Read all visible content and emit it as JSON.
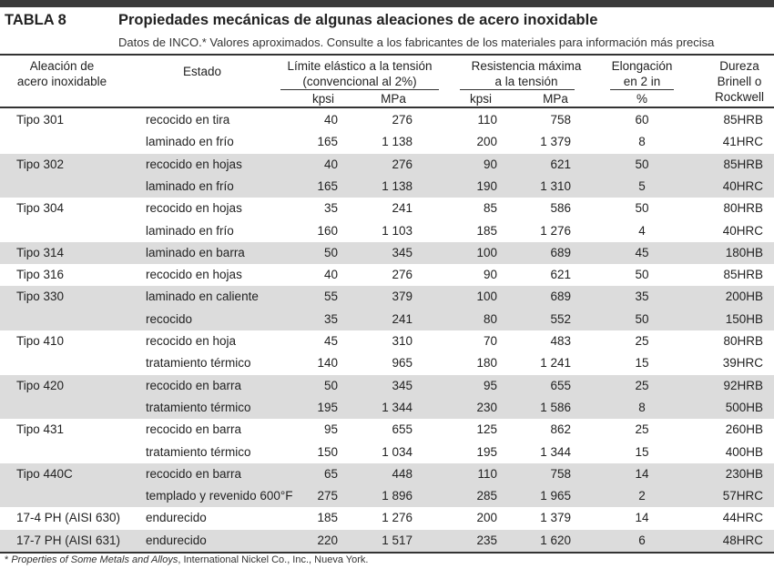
{
  "header": {
    "table_label": "TABLA 8",
    "title": "Propiedades mecánicas de algunas aleaciones de acero inoxidable",
    "subtitle": "Datos de INCO.* Valores aproximados. Consulte a los fabricantes de los materiales para información más precisa"
  },
  "columns": {
    "alloy": [
      "Aleación de",
      "acero inoxidable"
    ],
    "state": "Estado",
    "yield": [
      "Límite elástico a la tensión",
      "(convencional al 2%)"
    ],
    "yield_units": [
      "kpsi",
      "MPa"
    ],
    "ultimate": [
      "Resistencia máxima",
      "a la tensión"
    ],
    "ultimate_units": [
      "kpsi",
      "MPa"
    ],
    "elongation": [
      "Elongación",
      "en 2 in"
    ],
    "elongation_unit": "%",
    "hardness": [
      "Dureza",
      "Brinell o",
      "Rockwell"
    ]
  },
  "rows": [
    {
      "alloy": "Tipo 301",
      "state": "recocido en tira",
      "sy_kpsi": "40",
      "sy_mpa": "276",
      "su_kpsi": "110",
      "su_mpa": "758",
      "elong": "60",
      "hard": "85HRB",
      "shaded": false
    },
    {
      "alloy": "",
      "state": "laminado en frío",
      "sy_kpsi": "165",
      "sy_mpa": "1 138",
      "su_kpsi": "200",
      "su_mpa": "1 379",
      "elong": "8",
      "hard": "41HRC",
      "shaded": false
    },
    {
      "alloy": "Tipo 302",
      "state": "recocido en hojas",
      "sy_kpsi": "40",
      "sy_mpa": "276",
      "su_kpsi": "90",
      "su_mpa": "621",
      "elong": "50",
      "hard": "85HRB",
      "shaded": true
    },
    {
      "alloy": "",
      "state": "laminado en frío",
      "sy_kpsi": "165",
      "sy_mpa": "1 138",
      "su_kpsi": "190",
      "su_mpa": "1 310",
      "elong": "5",
      "hard": "40HRC",
      "shaded": true
    },
    {
      "alloy": "Tipo 304",
      "state": "recocido en hojas",
      "sy_kpsi": "35",
      "sy_mpa": "241",
      "su_kpsi": "85",
      "su_mpa": "586",
      "elong": "50",
      "hard": "80HRB",
      "shaded": false
    },
    {
      "alloy": "",
      "state": "laminado en frío",
      "sy_kpsi": "160",
      "sy_mpa": "1 103",
      "su_kpsi": "185",
      "su_mpa": "1 276",
      "elong": "4",
      "hard": "40HRC",
      "shaded": false
    },
    {
      "alloy": "Tipo 314",
      "state": "laminado en barra",
      "sy_kpsi": "50",
      "sy_mpa": "345",
      "su_kpsi": "100",
      "su_mpa": "689",
      "elong": "45",
      "hard": "180HB",
      "shaded": true
    },
    {
      "alloy": "Tipo 316",
      "state": "recocido en hojas",
      "sy_kpsi": "40",
      "sy_mpa": "276",
      "su_kpsi": "90",
      "su_mpa": "621",
      "elong": "50",
      "hard": "85HRB",
      "shaded": false
    },
    {
      "alloy": "Tipo 330",
      "state": "laminado en caliente",
      "sy_kpsi": "55",
      "sy_mpa": "379",
      "su_kpsi": "100",
      "su_mpa": "689",
      "elong": "35",
      "hard": "200HB",
      "shaded": true
    },
    {
      "alloy": "",
      "state": "recocido",
      "sy_kpsi": "35",
      "sy_mpa": "241",
      "su_kpsi": "80",
      "su_mpa": "552",
      "elong": "50",
      "hard": "150HB",
      "shaded": true
    },
    {
      "alloy": "Tipo 410",
      "state": "recocido en hoja",
      "sy_kpsi": "45",
      "sy_mpa": "310",
      "su_kpsi": "70",
      "su_mpa": "483",
      "elong": "25",
      "hard": "80HRB",
      "shaded": false
    },
    {
      "alloy": "",
      "state": "tratamiento térmico",
      "sy_kpsi": "140",
      "sy_mpa": "965",
      "su_kpsi": "180",
      "su_mpa": "1 241",
      "elong": "15",
      "hard": "39HRC",
      "shaded": false
    },
    {
      "alloy": "Tipo 420",
      "state": "recocido en barra",
      "sy_kpsi": "50",
      "sy_mpa": "345",
      "su_kpsi": "95",
      "su_mpa": "655",
      "elong": "25",
      "hard": "92HRB",
      "shaded": true
    },
    {
      "alloy": "",
      "state": "tratamiento térmico",
      "sy_kpsi": "195",
      "sy_mpa": "1 344",
      "su_kpsi": "230",
      "su_mpa": "1 586",
      "elong": "8",
      "hard": "500HB",
      "shaded": true
    },
    {
      "alloy": "Tipo 431",
      "state": "recocido en barra",
      "sy_kpsi": "95",
      "sy_mpa": "655",
      "su_kpsi": "125",
      "su_mpa": "862",
      "elong": "25",
      "hard": "260HB",
      "shaded": false
    },
    {
      "alloy": "",
      "state": "tratamiento térmico",
      "sy_kpsi": "150",
      "sy_mpa": "1 034",
      "su_kpsi": "195",
      "su_mpa": "1 344",
      "elong": "15",
      "hard": "400HB",
      "shaded": false
    },
    {
      "alloy": "Tipo 440C",
      "state": "recocido en barra",
      "sy_kpsi": "65",
      "sy_mpa": "448",
      "su_kpsi": "110",
      "su_mpa": "758",
      "elong": "14",
      "hard": "230HB",
      "shaded": true
    },
    {
      "alloy": "",
      "state": "templado y revenido 600°F",
      "sy_kpsi": "275",
      "sy_mpa": "1 896",
      "su_kpsi": "285",
      "su_mpa": "1 965",
      "elong": "2",
      "hard": "57HRC",
      "shaded": true
    },
    {
      "alloy": "17-4 PH (AISI 630)",
      "state": "endurecido",
      "sy_kpsi": "185",
      "sy_mpa": "1 276",
      "su_kpsi": "200",
      "su_mpa": "1 379",
      "elong": "14",
      "hard": "44HRC",
      "shaded": false
    },
    {
      "alloy": "17-7 PH (AISI 631)",
      "state": "endurecido",
      "sy_kpsi": "220",
      "sy_mpa": "1 517",
      "su_kpsi": "235",
      "su_mpa": "1 620",
      "elong": "6",
      "hard": "48HRC",
      "shaded": true
    }
  ],
  "footnote": {
    "marker": "* ",
    "source_title": "Properties of Some Metals and Alloys",
    "source_rest": ",  International Nickel Co., Inc., Nueva York."
  },
  "colors": {
    "shade": "#dcdcdc",
    "rule": "#333333"
  }
}
